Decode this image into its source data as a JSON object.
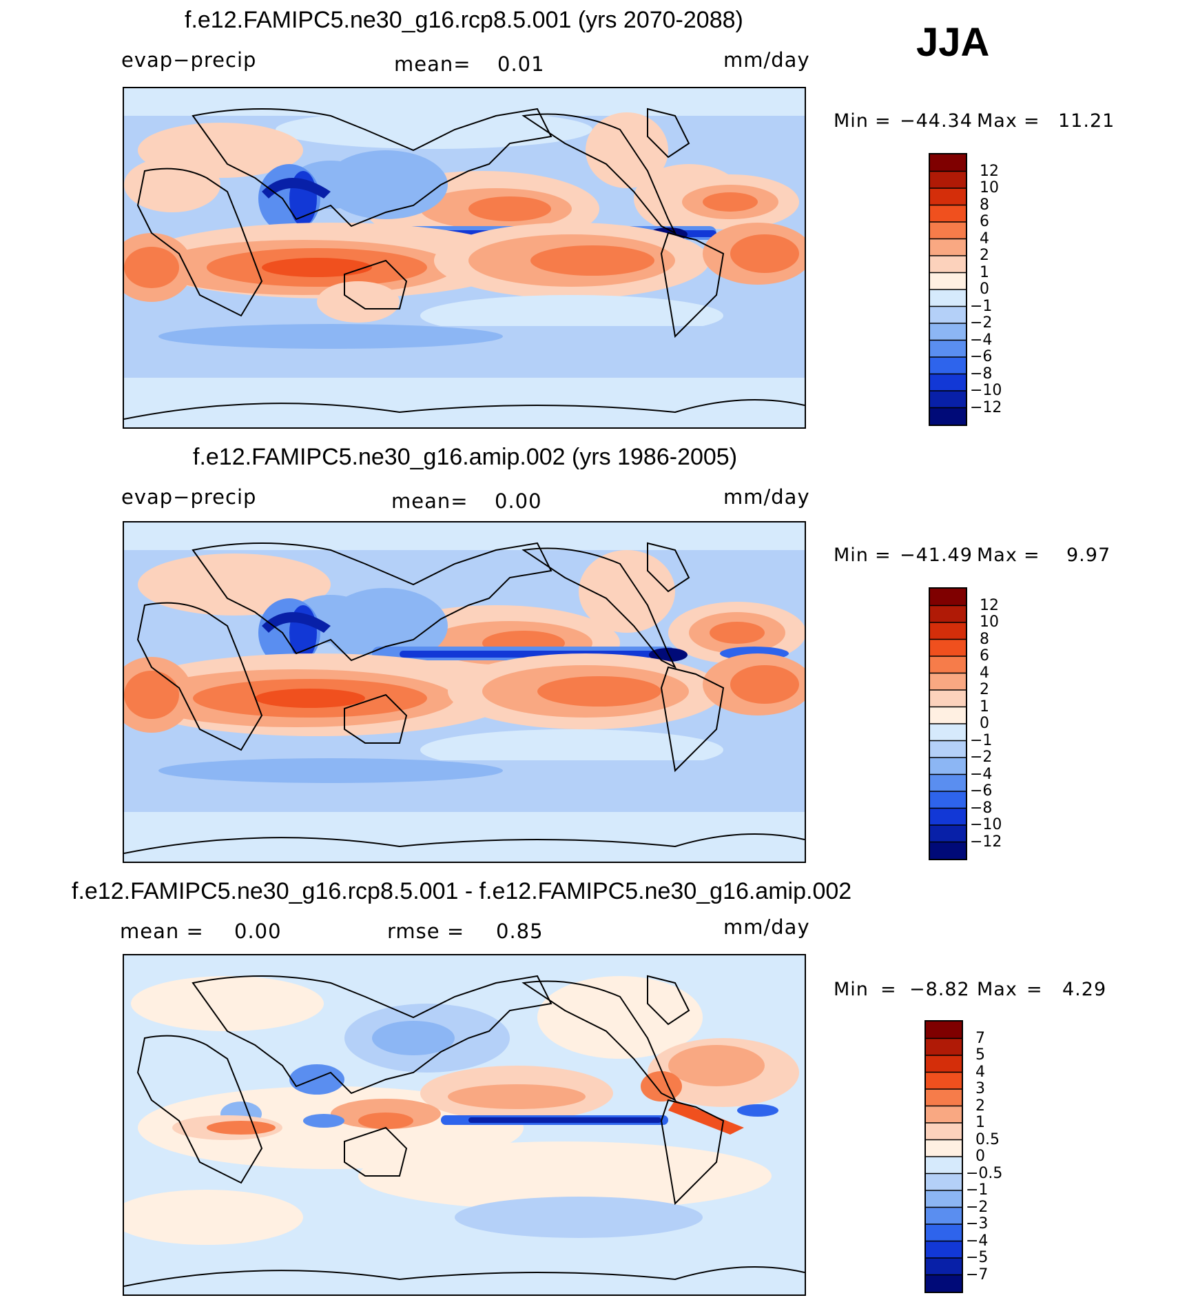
{
  "season": "JJA",
  "panels": [
    {
      "title": "f.e12.FAMIPC5.ne30_g16.rcp8.5.001 (yrs 2070-2088)",
      "left_label": "evap−precip",
      "center_label": "mean=",
      "center_value": "0.01",
      "right_label": "mm/day",
      "min_label": "Min",
      "min_value": "−44.34",
      "max_label": "Max",
      "max_value": "11.21",
      "colorbar": {
        "labels": [
          "12",
          "10",
          "8",
          "6",
          "4",
          "2",
          "1",
          "0",
          "−1",
          "−2",
          "−4",
          "−6",
          "−8",
          "−10",
          "−12"
        ],
        "colors": [
          "#7f0000",
          "#b01a06",
          "#d42e0a",
          "#f0501e",
          "#f67c4a",
          "#f9a882",
          "#fcd2bc",
          "#fff0e2",
          "#d6eafc",
          "#b4d0f8",
          "#8cb6f4",
          "#5a8ef0",
          "#2e64ec",
          "#1238d6",
          "#0820a8",
          "#000a78"
        ]
      }
    },
    {
      "title": "f.e12.FAMIPC5.ne30_g16.amip.002 (yrs 1986-2005)",
      "left_label": "evap−precip",
      "center_label": "mean=",
      "center_value": "0.00",
      "right_label": "mm/day",
      "min_label": "Min",
      "min_value": "−41.49",
      "max_label": "Max",
      "max_value": "9.97",
      "colorbar": {
        "labels": [
          "12",
          "10",
          "8",
          "6",
          "4",
          "2",
          "1",
          "0",
          "−1",
          "−2",
          "−4",
          "−6",
          "−8",
          "−10",
          "−12"
        ],
        "colors": [
          "#7f0000",
          "#b01a06",
          "#d42e0a",
          "#f0501e",
          "#f67c4a",
          "#f9a882",
          "#fcd2bc",
          "#fff0e2",
          "#d6eafc",
          "#b4d0f8",
          "#8cb6f4",
          "#5a8ef0",
          "#2e64ec",
          "#1238d6",
          "#0820a8",
          "#000a78"
        ]
      }
    },
    {
      "title": "f.e12.FAMIPC5.ne30_g16.rcp8.5.001 - f.e12.FAMIPC5.ne30_g16.amip.002",
      "left_label": "mean =",
      "left_value": "0.00",
      "center_label": "rmse =",
      "center_value": "0.85",
      "right_label": "mm/day",
      "min_label": "Min",
      "min_value": "−8.82",
      "max_label": "Max",
      "max_value": "4.29",
      "colorbar": {
        "labels": [
          "7",
          "5",
          "4",
          "3",
          "2",
          "1",
          "0.5",
          "0",
          "−0.5",
          "−1",
          "−2",
          "−3",
          "−4",
          "−5",
          "−7"
        ],
        "colors": [
          "#7f0000",
          "#b01a06",
          "#d42e0a",
          "#f0501e",
          "#f67c4a",
          "#f9a882",
          "#fcd2bc",
          "#fff0e2",
          "#d6eafc",
          "#b4d0f8",
          "#8cb6f4",
          "#5a8ef0",
          "#2e64ec",
          "#1238d6",
          "#0820a8",
          "#000a78"
        ]
      }
    }
  ]
}
